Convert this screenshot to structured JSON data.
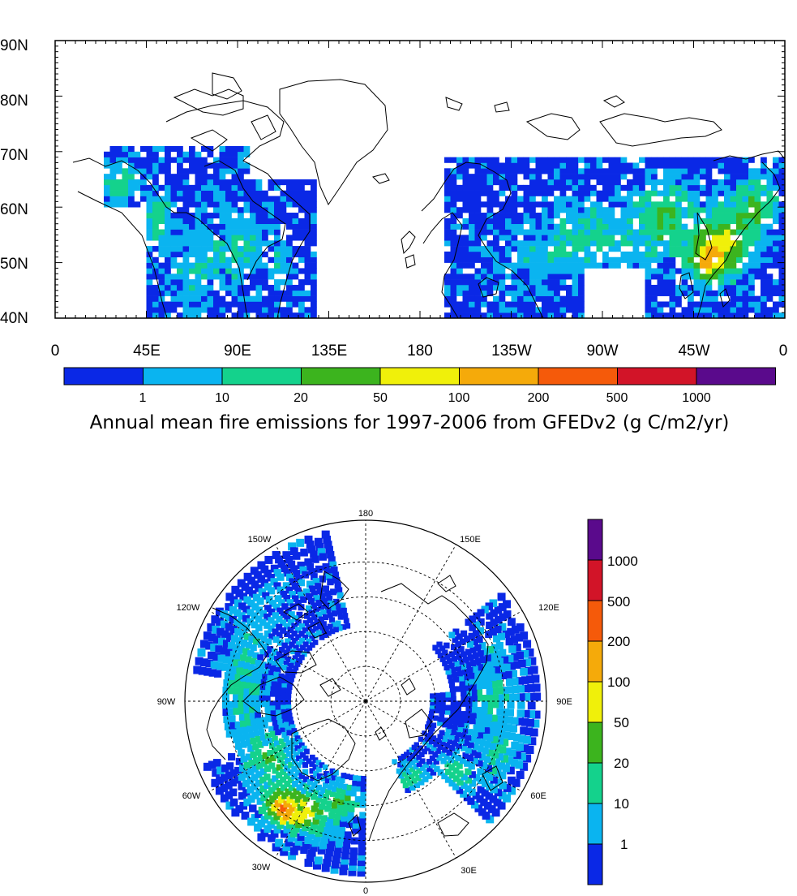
{
  "top_map": {
    "lat_labels": [
      "90N",
      "80N",
      "70N",
      "60N",
      "50N",
      "40N"
    ],
    "lon_labels": [
      "0",
      "45E",
      "90E",
      "135E",
      "180",
      "135W",
      "90W",
      "45W",
      "0"
    ]
  },
  "top_colorbar": {
    "labels": [
      "1",
      "10",
      "20",
      "50",
      "100",
      "200",
      "500",
      "1000"
    ]
  },
  "caption": "Annual mean fire emissions for 1997-2006 from GFEDv2 (g C/m2/yr)",
  "polar_map": {
    "lon_labels": [
      "180",
      "150E",
      "120E",
      "90E",
      "60E",
      "30E",
      "0",
      "30W",
      "60W",
      "90W",
      "120W",
      "150W"
    ]
  },
  "side_colorbar": {
    "labels": [
      "1000",
      "500",
      "200",
      "100",
      "50",
      "20",
      "10",
      "1"
    ]
  },
  "colors": {
    "levels": [
      "#0a28e6",
      "#0ab4f0",
      "#14d28c",
      "#3cb41e",
      "#f0f00a",
      "#f5aa0a",
      "#f55a0a",
      "#d21428",
      "#5a0a8c"
    ]
  }
}
